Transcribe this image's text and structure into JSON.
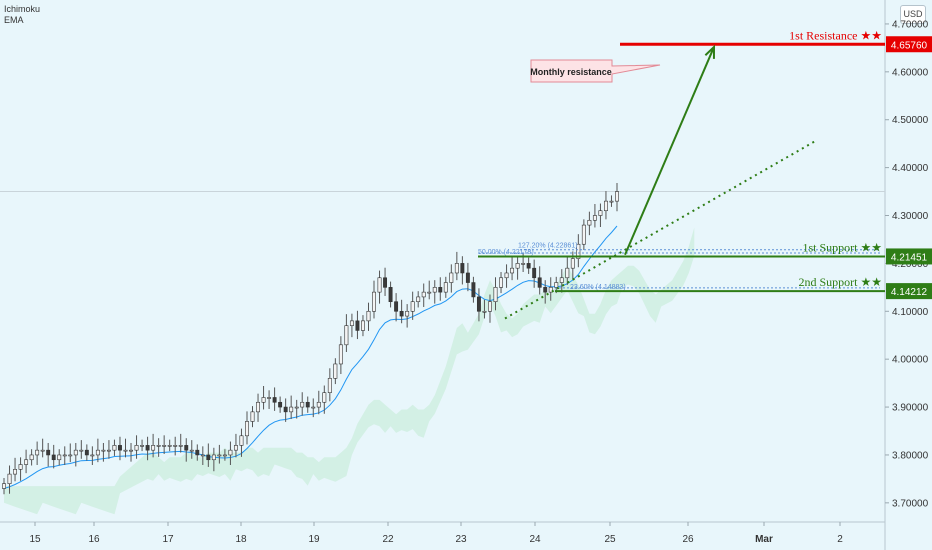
{
  "indicators": [
    "Ichimoku",
    "EMA"
  ],
  "currency": "USD",
  "colors": {
    "background": "#e8f6fb",
    "up": "#26a69a",
    "down": "#ef5350",
    "wick": "#555555",
    "ema": "#2196f3",
    "cloud": "#c8ecd9",
    "resistance": "#e60000",
    "support": "#2e7d16",
    "trend": "#2e7d16",
    "fib": "#5b8fd6",
    "axis_text": "#333333"
  },
  "chart_data": {
    "type": "candlestick",
    "y_axis_ticks": [
      "4.70000",
      "4.60000",
      "4.50000",
      "4.40000",
      "4.30000",
      "4.20000",
      "4.10000",
      "4.00000",
      "3.90000",
      "3.80000",
      "3.70000"
    ],
    "ylim": [
      3.66,
      4.75
    ],
    "x_axis_ticks": [
      "15",
      "16",
      "17",
      "18",
      "19",
      "22",
      "23",
      "24",
      "25",
      "26",
      "Mar",
      "2"
    ],
    "current_price": 4.35,
    "levels": [
      {
        "name": "1st Resistance ★★",
        "value": 4.6576,
        "value_label": "4.65760",
        "kind": "resistance"
      },
      {
        "name": "1st Support ★★",
        "value": 4.21451,
        "value_label": "4.21451",
        "kind": "support"
      },
      {
        "name": "2nd Support ★★",
        "value": 4.14212,
        "value_label": "4.14212",
        "kind": "support"
      }
    ],
    "annotations": [
      {
        "text": "Monthly resistance"
      }
    ],
    "fib_labels": [
      "127.20% (4.22861)",
      "50.00% (4.22178)",
      "23.60% (4.14883)"
    ],
    "closes": [
      3.74,
      3.76,
      3.77,
      3.78,
      3.79,
      3.8,
      3.81,
      3.81,
      3.8,
      3.79,
      3.8,
      3.8,
      3.8,
      3.81,
      3.81,
      3.8,
      3.8,
      3.81,
      3.81,
      3.81,
      3.82,
      3.81,
      3.81,
      3.81,
      3.82,
      3.82,
      3.81,
      3.82,
      3.82,
      3.82,
      3.82,
      3.82,
      3.82,
      3.81,
      3.81,
      3.8,
      3.8,
      3.79,
      3.8,
      3.8,
      3.8,
      3.81,
      3.82,
      3.84,
      3.87,
      3.89,
      3.91,
      3.92,
      3.92,
      3.91,
      3.9,
      3.89,
      3.9,
      3.9,
      3.91,
      3.9,
      3.9,
      3.91,
      3.93,
      3.96,
      3.99,
      4.03,
      4.07,
      4.08,
      4.06,
      4.08,
      4.1,
      4.14,
      4.17,
      4.15,
      4.12,
      4.1,
      4.09,
      4.1,
      4.12,
      4.13,
      4.14,
      4.14,
      4.15,
      4.14,
      4.16,
      4.18,
      4.2,
      4.18,
      4.16,
      4.13,
      4.1,
      4.1,
      4.12,
      4.15,
      4.17,
      4.18,
      4.19,
      4.2,
      4.2,
      4.19,
      4.17,
      4.15,
      4.14,
      4.15,
      4.16,
      4.17,
      4.19,
      4.21,
      4.24,
      4.28,
      4.29,
      4.3,
      4.31,
      4.33,
      4.33,
      4.35
    ]
  }
}
